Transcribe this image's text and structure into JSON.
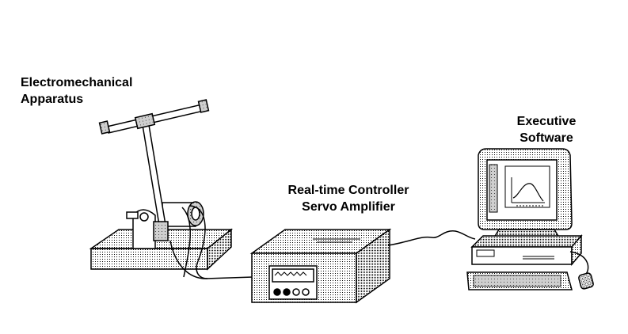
{
  "labels": {
    "apparatus": [
      "Electromechanical",
      "Apparatus"
    ],
    "controller": [
      "Real-time Controller",
      "Servo Amplifier"
    ],
    "software": [
      "Executive",
      "Software"
    ]
  },
  "colors": {
    "ink": "#000000",
    "paper": "#ffffff",
    "shade": "#b8b8b8",
    "light_shade": "#d8d8d8",
    "screen": "#e0e0e0"
  },
  "icons": [
    "apparatus-drawing",
    "controller-box-drawing",
    "computer-drawing"
  ]
}
